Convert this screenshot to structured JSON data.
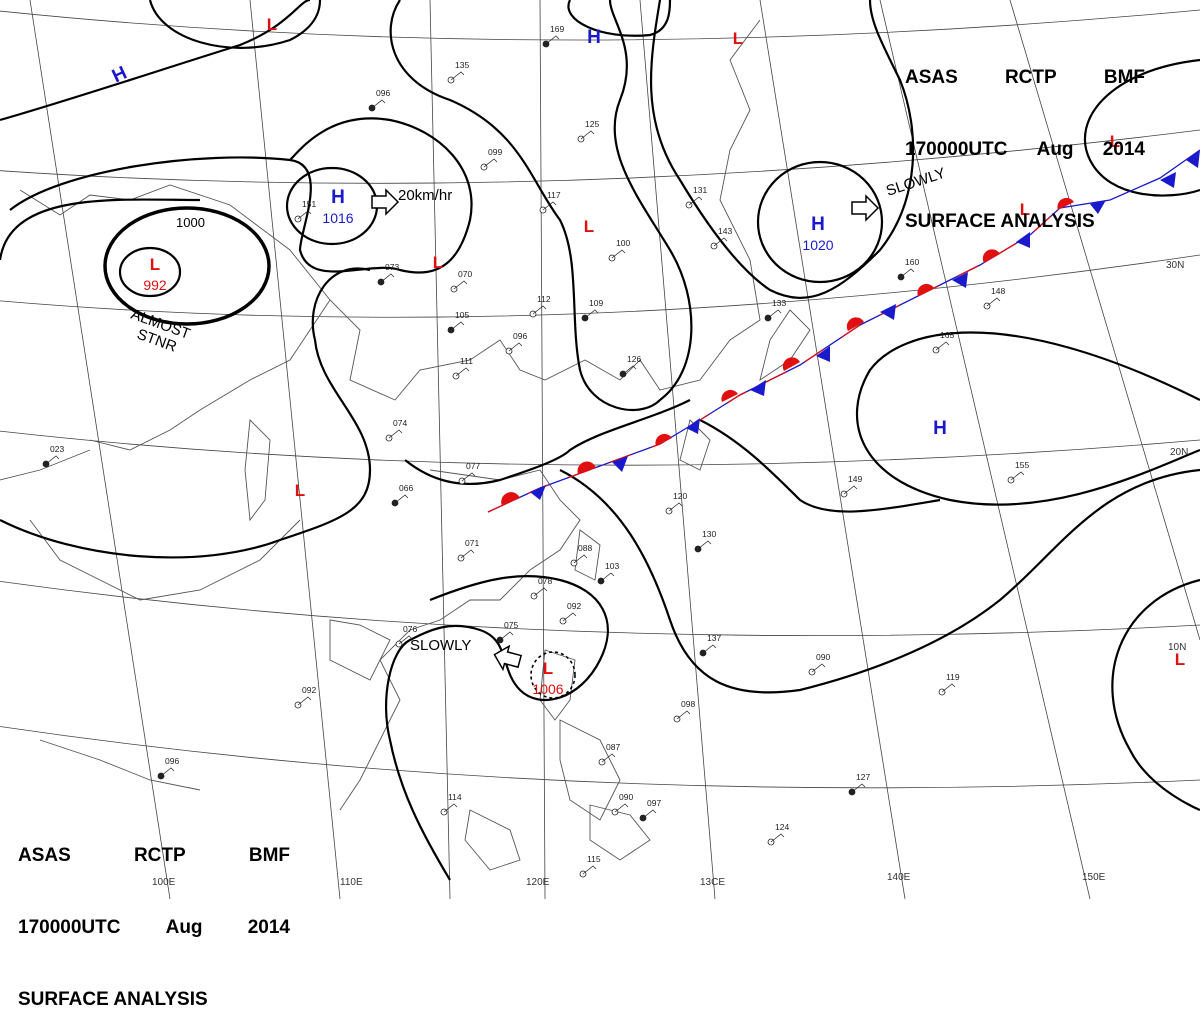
{
  "header": {
    "line1": [
      "ASAS",
      "RCTP",
      "BMF"
    ],
    "line2": [
      "170000UTC",
      "Aug",
      "2014"
    ],
    "line3": "SURFACE ANALYSIS"
  },
  "colors": {
    "high": "#1a1acc",
    "low": "#e01010",
    "isobar": "#000000",
    "grid": "#444444",
    "coast": "#555555",
    "warm_front": "#e01010",
    "cold_front": "#1a1acc"
  },
  "lon_labels": [
    "100E",
    "110E",
    "120E",
    "13CE",
    "140E",
    "150E"
  ],
  "lat_labels": [
    "30N",
    "20N",
    "10N"
  ],
  "pressure_centers": [
    {
      "type": "H",
      "value": ""
    },
    {
      "type": "H",
      "value": ""
    },
    {
      "type": "H",
      "value": "1016"
    },
    {
      "type": "H",
      "value": "1020"
    },
    {
      "type": "H",
      "value": ""
    },
    {
      "type": "L",
      "value": "992"
    },
    {
      "type": "L",
      "value": ""
    },
    {
      "type": "L",
      "value": ""
    },
    {
      "type": "L",
      "value": ""
    },
    {
      "type": "L",
      "value": ""
    },
    {
      "type": "L",
      "value": "1006"
    },
    {
      "type": "L",
      "value": ""
    },
    {
      "type": "L",
      "value": ""
    },
    {
      "type": "L",
      "value": ""
    },
    {
      "type": "L",
      "value": ""
    }
  ],
  "isobar_labels": [
    "1000"
  ],
  "annotations": {
    "motion_h": "20km/hr",
    "motion_h2": "SLOWLY",
    "almost": "ALMOST",
    "stnr": "STNR",
    "slowly_low": "SLOWLY"
  },
  "stations": [
    "096",
    "099",
    "125",
    "169",
    "135",
    "151",
    "073",
    "070",
    "112",
    "109",
    "117",
    "100",
    "133",
    "131",
    "143",
    "160",
    "148",
    "165",
    "105",
    "111",
    "096",
    "126",
    "074",
    "077",
    "066",
    "071",
    "088",
    "103",
    "078",
    "092",
    "075",
    "076",
    "092",
    "096",
    "114",
    "120",
    "130",
    "087",
    "090",
    "097",
    "098",
    "124",
    "127",
    "119",
    "115",
    "023",
    "149",
    "155",
    "137",
    "090"
  ]
}
